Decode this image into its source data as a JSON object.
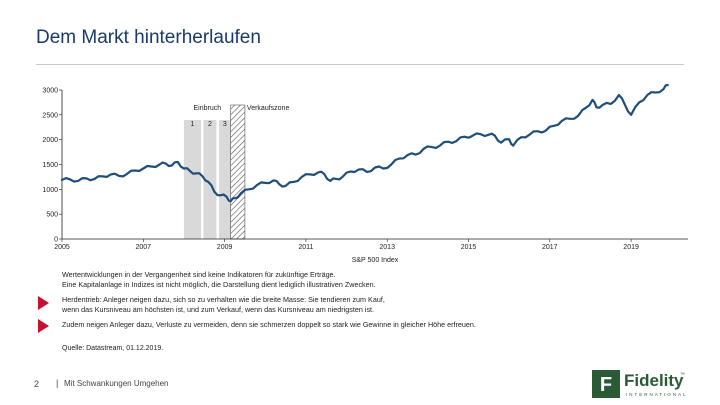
{
  "slide": {
    "title": "Dem Markt hinterherlaufen",
    "note_lines": [
      "Wertentwicklungen in der Vergangenheit sind keine Indikatoren für zukünftige Erträge.",
      "Eine Kapitalanlage in Indizes ist nicht möglich, die Darstellung dient lediglich illustrativen Zwecken."
    ],
    "bullets": [
      {
        "lines": [
          "Herdentrieb: Anleger neigen dazu, sich so zu verhalten wie die breite Masse: Sie tendieren zum Kauf,",
          "wenn das Kursniveau am höchsten ist, und zum Verkauf, wenn das Kursniveau am niedrigsten ist."
        ]
      },
      {
        "lines": [
          "Zudem neigen Anleger dazu, Verluste zu vermeiden, denn sie schmerzen doppelt so stark wie Gewinne in gleicher Höhe erfreuen."
        ]
      }
    ],
    "source": "Quelle: Datastream, 01.12.2019.",
    "bullet_color": "#c8102e"
  },
  "footer": {
    "page_number": "2",
    "divider": "|",
    "text": "Mit Schwankungen Umgehen"
  },
  "logo": {
    "glyph": "F",
    "name": "Fidelity",
    "tagline": "INTERNATIONAL",
    "trademark": "™",
    "color": "#2b5a36"
  },
  "chart_data": {
    "type": "line",
    "xlabel": "S&P 500 Index",
    "ylabel": "",
    "xlim": [
      2005,
      2020.4
    ],
    "ylim": [
      0,
      3000
    ],
    "x_ticks": [
      2005,
      2007,
      2009,
      2011,
      2013,
      2015,
      2017,
      2019
    ],
    "x_tick_labels": [
      "2005",
      "2007",
      "2009",
      "2011",
      "2013",
      "2015",
      "2017",
      "2019"
    ],
    "y_ticks": [
      0,
      500,
      1000,
      1500,
      2000,
      2500,
      3000
    ],
    "y_tick_labels": [
      "0",
      "500",
      "1000",
      "1500",
      "2000",
      "2500",
      "3000"
    ],
    "line_color": "#1f4e79",
    "series": [
      {
        "x": [
          2005.0,
          2005.2,
          2005.4,
          2005.6,
          2005.8,
          2006.0,
          2006.2,
          2006.4,
          2006.6,
          2006.8,
          2007.0,
          2007.2,
          2007.4,
          2007.55,
          2007.7,
          2007.85,
          2008.0,
          2008.15,
          2008.3,
          2008.45,
          2008.6,
          2008.75,
          2008.9,
          2009.05,
          2009.15,
          2009.25,
          2009.4,
          2009.6,
          2009.8,
          2010.0,
          2010.2,
          2010.35,
          2010.5,
          2010.7,
          2010.9,
          2011.1,
          2011.3,
          2011.45,
          2011.6,
          2011.75,
          2011.9,
          2012.1,
          2012.3,
          2012.5,
          2012.7,
          2012.9,
          2013.1,
          2013.3,
          2013.5,
          2013.7,
          2013.9,
          2014.1,
          2014.3,
          2014.5,
          2014.7,
          2014.9,
          2015.1,
          2015.3,
          2015.5,
          2015.65,
          2015.8,
          2016.0,
          2016.1,
          2016.3,
          2016.5,
          2016.7,
          2016.9,
          2017.1,
          2017.3,
          2017.5,
          2017.7,
          2017.9,
          2018.05,
          2018.15,
          2018.3,
          2018.5,
          2018.7,
          2018.85,
          2019.0,
          2019.2,
          2019.4,
          2019.6,
          2019.8,
          2019.9
        ],
        "y": [
          1190,
          1200,
          1170,
          1220,
          1210,
          1260,
          1300,
          1270,
          1310,
          1380,
          1420,
          1460,
          1500,
          1520,
          1480,
          1550,
          1420,
          1370,
          1320,
          1270,
          1150,
          950,
          880,
          850,
          760,
          820,
          920,
          1000,
          1090,
          1130,
          1180,
          1100,
          1070,
          1150,
          1250,
          1300,
          1340,
          1310,
          1170,
          1210,
          1250,
          1360,
          1400,
          1350,
          1440,
          1420,
          1500,
          1620,
          1690,
          1700,
          1820,
          1850,
          1880,
          1960,
          1970,
          2060,
          2080,
          2110,
          2100,
          2080,
          1940,
          2010,
          1880,
          2050,
          2100,
          2170,
          2180,
          2280,
          2380,
          2420,
          2480,
          2650,
          2800,
          2650,
          2700,
          2720,
          2900,
          2700,
          2500,
          2750,
          2900,
          2950,
          3020,
          3100
        ]
      }
    ],
    "bands": [
      {
        "x0": 2008.0,
        "x1": 2008.42,
        "label": "1"
      },
      {
        "x0": 2008.48,
        "x1": 2008.8,
        "label": "2"
      },
      {
        "x0": 2008.86,
        "x1": 2009.15,
        "label": "3"
      }
    ],
    "sell_zone": {
      "x0": 2009.15,
      "x1": 2009.5
    },
    "annotations": {
      "crash_label": "Einbruch",
      "sell_label": "Verkaufszone"
    },
    "band_color": "#d9d9d9"
  }
}
